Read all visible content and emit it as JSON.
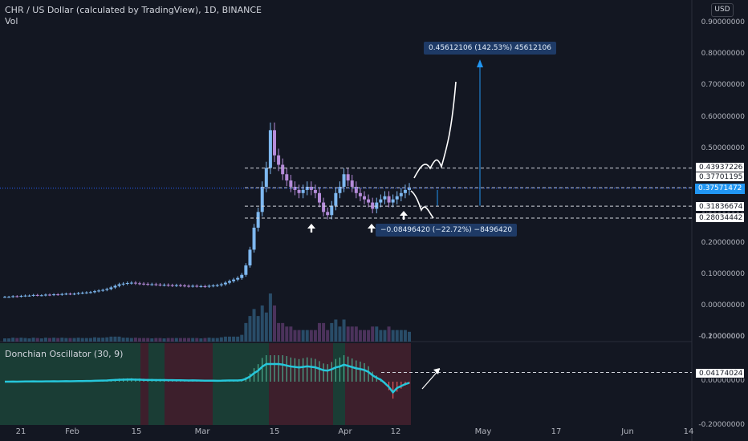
{
  "header": {
    "title": "CHR / US Dollar (calculated by TradingView), 1D, BINANCE",
    "vol_label": "Vol",
    "currency": "USD",
    "indicator_label": "Donchian Oscillator (30, 9)"
  },
  "price_axis": [
    "0.90000000",
    "0.80000000",
    "0.70000000",
    "0.60000000",
    "0.50000000",
    "0.40000000",
    "0.30000000",
    "0.20000000",
    "0.10000000",
    "0.00000000",
    "-0.10000000"
  ],
  "osc_axis": [
    "0.20000000",
    "0.00000000",
    "-0.20000000"
  ],
  "price_labels": [
    {
      "text": "0.43937226",
      "style": "white"
    },
    {
      "text": "0.37701195",
      "style": "white"
    },
    {
      "text": "0.37571472",
      "style": "blue"
    },
    {
      "text": "0.31836674",
      "style": "white"
    },
    {
      "text": "0.28034442",
      "style": "white"
    }
  ],
  "osc_label": "0.04174024",
  "x_axis": [
    "21",
    "Feb",
    "15",
    "Mar",
    "15",
    "Apr",
    "12",
    "May",
    "17",
    "Jun",
    "14"
  ],
  "measure_up": "0.45612106 (142.53%) 45612106",
  "measure_down": "−0.08496420 (−22.72%) −8496420",
  "chart_data": {
    "type": "candlestick",
    "title": "CHR / US Dollar (calculated by TradingView), 1D, BINANCE",
    "x_ticks": [
      "21",
      "Feb",
      "15",
      "Mar",
      "15",
      "Apr",
      "12",
      "May",
      "17",
      "Jun",
      "14"
    ],
    "ylim": [
      -0.1,
      0.9
    ],
    "close_series": [
      0.03,
      0.03,
      0.032,
      0.031,
      0.033,
      0.034,
      0.034,
      0.036,
      0.035,
      0.035,
      0.037,
      0.036,
      0.038,
      0.037,
      0.039,
      0.04,
      0.039,
      0.04,
      0.042,
      0.043,
      0.044,
      0.045,
      0.048,
      0.05,
      0.052,
      0.055,
      0.06,
      0.065,
      0.07,
      0.072,
      0.074,
      0.075,
      0.073,
      0.072,
      0.071,
      0.07,
      0.07,
      0.069,
      0.068,
      0.068,
      0.067,
      0.066,
      0.067,
      0.066,
      0.065,
      0.064,
      0.065,
      0.064,
      0.064,
      0.063,
      0.065,
      0.066,
      0.067,
      0.07,
      0.075,
      0.08,
      0.085,
      0.09,
      0.1,
      0.13,
      0.18,
      0.25,
      0.3,
      0.38,
      0.44,
      0.56,
      0.48,
      0.45,
      0.42,
      0.4,
      0.38,
      0.37,
      0.36,
      0.37,
      0.38,
      0.37,
      0.36,
      0.33,
      0.3,
      0.29,
      0.32,
      0.36,
      0.38,
      0.42,
      0.4,
      0.38,
      0.36,
      0.35,
      0.34,
      0.33,
      0.31,
      0.33,
      0.34,
      0.35,
      0.33,
      0.34,
      0.35,
      0.36,
      0.37,
      0.375
    ],
    "last_price": 0.37571472,
    "horizontal_levels": [
      0.43937226,
      0.37701195,
      0.31836674,
      0.28034442
    ],
    "measure_up": {
      "change": 0.45612106,
      "percent": 142.53
    },
    "measure_down": {
      "change": -0.0849642,
      "percent": -22.72
    },
    "oscillator": {
      "name": "Donchian Oscillator (30, 9)",
      "ylim": [
        -0.25,
        0.25
      ],
      "level": 0.04174024
    }
  }
}
